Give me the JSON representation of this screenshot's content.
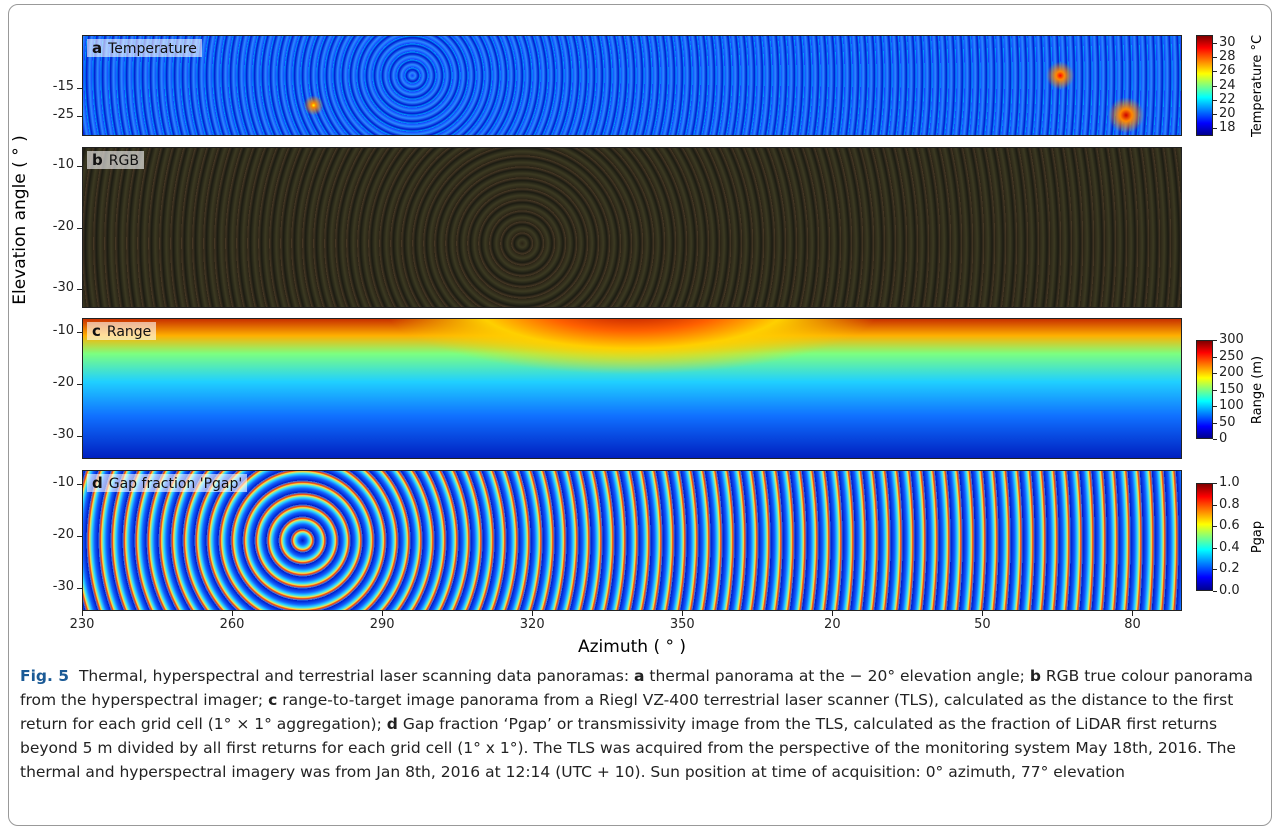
{
  "figure": {
    "y_axis_label": "Elevation angle ( ° )",
    "x_axis_label": "Azimuth ( ° )",
    "x_ticks": [
      "230",
      "260",
      "290",
      "320",
      "350",
      "20",
      "50",
      "80"
    ],
    "panels": [
      {
        "letter": "a",
        "title": "Temperature",
        "y_ticks": [
          "-15",
          "-25"
        ],
        "colorbar": {
          "label": "Temperature °C",
          "ticks": [
            "18",
            "20",
            "22",
            "24",
            "26",
            "28",
            "30"
          ]
        }
      },
      {
        "letter": "b",
        "title": "RGB",
        "y_ticks": [
          "-10",
          "-20",
          "-30"
        ]
      },
      {
        "letter": "c",
        "title": "Range",
        "y_ticks": [
          "-10",
          "-20",
          "-30"
        ],
        "colorbar": {
          "label": "Range (m)",
          "ticks": [
            "0",
            "50",
            "100",
            "150",
            "200",
            "250",
            "300"
          ]
        }
      },
      {
        "letter": "d",
        "title": "Gap fraction 'Pgap'",
        "y_ticks": [
          "-10",
          "-20",
          "-30"
        ],
        "colorbar": {
          "label": "Pgap",
          "ticks": [
            "0.0",
            "0.2",
            "0.4",
            "0.6",
            "0.8",
            "1.0"
          ]
        }
      }
    ]
  },
  "caption": {
    "label": "Fig. 5",
    "intro": "Thermal, hyperspectral and terrestrial laser scanning data panoramas:",
    "items": [
      {
        "letter": "a",
        "text": "thermal panorama at the − 20° elevation angle;"
      },
      {
        "letter": "b",
        "text": "RGB true colour panorama from the hyperspectral imager;"
      },
      {
        "letter": "c",
        "text": "range-to-target image panorama from a Riegl VZ-400 terrestrial laser scanner (TLS), calculated as the distance to the first return for each grid cell (1° × 1° aggregation);"
      },
      {
        "letter": "d",
        "text": "Gap fraction ‘Pgap’ or transmissivity image from the TLS, calculated as the fraction of LiDAR first returns beyond 5 m divided by all first returns for each grid cell (1° x 1°). The TLS was acquired from the perspective of the monitoring system May 18th, 2016. The thermal and hyperspectral imagery was from Jan 8th, 2016 at 12:14 (UTC + 10). Sun position at time of acquisition: 0° azimuth, 77° elevation"
      }
    ]
  }
}
